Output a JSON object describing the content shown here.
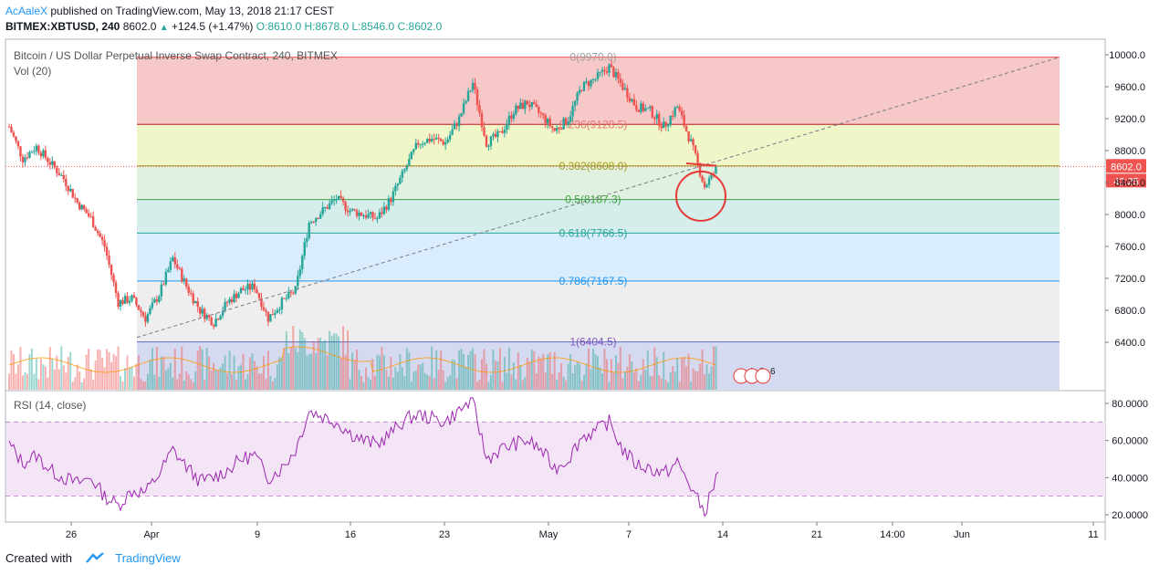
{
  "header": {
    "author": "AcAaleX",
    "published": "published on TradingView.com, May 13, 2018 21:17 CEST",
    "symbol_line": {
      "symbol": "BITMEX:XBTUSD, 240",
      "last": "8602.0",
      "change": "+124.5 (+1.47%)",
      "ohlc": "O:8610.0 H:8678.0 L:8546.0 C:8602.0"
    }
  },
  "main_pane": {
    "title": "Bitcoin / US Dollar Perpetual Inverse Swap Contract, 240, BITMEX",
    "volume_label": "Vol (20)",
    "price_badge": "8602.0",
    "timer_badge": "42:25",
    "event_badges": [
      "4",
      "8",
      "6"
    ]
  },
  "rsi_pane": {
    "label": "RSI (14, close)"
  },
  "footer": {
    "created_with": "Created with",
    "brand": "TradingView"
  },
  "colors": {
    "up": "#26a69a",
    "down": "#ef5350",
    "fib_0_236": "#ef9a9a",
    "fib_0_236_0_382": "#e6ee9c",
    "fib_0_382_0_5": "#c8e6c9",
    "fib_0_5_0_618": "#b2dfdb",
    "fib_0_618_0_786": "#bbdefb",
    "fib_0_786_1": "#e0e0e0",
    "rsi_line": "#9c27b0",
    "rsi_band": "#f3e5f5"
  },
  "chart_data": [
    {
      "type": "candlestick",
      "title": "Bitcoin / US Dollar Perpetual Inverse Swap Contract, 240, BITMEX",
      "y_axis_ticks": [
        10000.0,
        9600.0,
        9200.0,
        8800.0,
        8400.0,
        8000.0,
        7600.0,
        7200.0,
        6800.0,
        6400.0
      ],
      "ylim": [
        6300,
        10100
      ],
      "x_axis_ticks": [
        "26",
        "Apr",
        "9",
        "16",
        "23",
        "May",
        "7",
        "14",
        "21",
        "14:00",
        "Jun",
        "11"
      ],
      "fibonacci": [
        {
          "level": "0",
          "price": 9970.0,
          "label": "0(9970.0)"
        },
        {
          "level": "0.236",
          "price": 9128.5,
          "label": "0.236(9128.5)"
        },
        {
          "level": "0.382",
          "price": 8608.0,
          "label": "0.382(8608.0)"
        },
        {
          "level": "0.5",
          "price": 8187.3,
          "label": "0.5(8187.3)"
        },
        {
          "level": "0.618",
          "price": 7766.5,
          "label": "0.618(7766.5)"
        },
        {
          "level": "0.786",
          "price": 7167.5,
          "label": "0.786(7167.5)"
        },
        {
          "level": "1",
          "price": 6404.5,
          "label": "1(6404.5)"
        }
      ],
      "last_price": 8602.0,
      "path_points": [
        [
          "Mar 22",
          9100
        ],
        [
          "Mar 23",
          8700
        ],
        [
          "Mar 24",
          8850
        ],
        [
          "Mar 25",
          8650
        ],
        [
          "Mar 26",
          8450
        ],
        [
          "Mar 27",
          8150
        ],
        [
          "Mar 28",
          7950
        ],
        [
          "Mar 29",
          7600
        ],
        [
          "Mar 30",
          6900
        ],
        [
          "Mar 31",
          6950
        ],
        [
          "Apr 1",
          6700
        ],
        [
          "Apr 2",
          7000
        ],
        [
          "Apr 3",
          7450
        ],
        [
          "Apr 4",
          7100
        ],
        [
          "Apr 5",
          6800
        ],
        [
          "Apr 6",
          6650
        ],
        [
          "Apr 7",
          6900
        ],
        [
          "Apr 8",
          7050
        ],
        [
          "Apr 9",
          7100
        ],
        [
          "Apr 10",
          6700
        ],
        [
          "Apr 11",
          6900
        ],
        [
          "Apr 12",
          7050
        ],
        [
          "Apr 13",
          7900
        ],
        [
          "Apr 14",
          8050
        ],
        [
          "Apr 15",
          8200
        ],
        [
          "Apr 16",
          8050
        ],
        [
          "Apr 17",
          8000
        ],
        [
          "Apr 18",
          7950
        ],
        [
          "Apr 19",
          8200
        ],
        [
          "Apr 20",
          8550
        ],
        [
          "Apr 21",
          8900
        ],
        [
          "Apr 22",
          8950
        ],
        [
          "Apr 23",
          8900
        ],
        [
          "Apr 24",
          9200
        ],
        [
          "Apr 25",
          9650
        ],
        [
          "Apr 26",
          8900
        ],
        [
          "Apr 27",
          9000
        ],
        [
          "Apr 28",
          9300
        ],
        [
          "Apr 29",
          9400
        ],
        [
          "Apr 30",
          9250
        ],
        [
          "May 1",
          9050
        ],
        [
          "May 2",
          9200
        ],
        [
          "May 3",
          9600
        ],
        [
          "May 4",
          9700
        ],
        [
          "May 5",
          9850
        ],
        [
          "May 6",
          9600
        ],
        [
          "May 7",
          9350
        ],
        [
          "May 8",
          9300
        ],
        [
          "May 9",
          9100
        ],
        [
          "May 10",
          9350
        ],
        [
          "May 11",
          8900
        ],
        [
          "May 12",
          8350
        ],
        [
          "May 13",
          8602
        ]
      ]
    },
    {
      "type": "line",
      "title": "RSI (14, close)",
      "y_axis_ticks": [
        80.0,
        60.0,
        40.0,
        20.0
      ],
      "ylim": [
        15,
        85
      ],
      "bands": [
        30,
        70
      ],
      "path_points": [
        [
          "Mar 22",
          58
        ],
        [
          "Mar 23",
          48
        ],
        [
          "Mar 24",
          52
        ],
        [
          "Mar 25",
          44
        ],
        [
          "Mar 26",
          40
        ],
        [
          "Mar 27",
          37
        ],
        [
          "Mar 28",
          40
        ],
        [
          "Mar 29",
          30
        ],
        [
          "Mar 30",
          25
        ],
        [
          "Mar 31",
          33
        ],
        [
          "Apr 1",
          32
        ],
        [
          "Apr 2",
          42
        ],
        [
          "Apr 3",
          55
        ],
        [
          "Apr 4",
          46
        ],
        [
          "Apr 5",
          38
        ],
        [
          "Apr 6",
          40
        ],
        [
          "Apr 7",
          44
        ],
        [
          "Apr 8",
          50
        ],
        [
          "Apr 9",
          52
        ],
        [
          "Apr 10",
          40
        ],
        [
          "Apr 11",
          45
        ],
        [
          "Apr 12",
          55
        ],
        [
          "Apr 13",
          76
        ],
        [
          "Apr 14",
          73
        ],
        [
          "Apr 15",
          70
        ],
        [
          "Apr 16",
          64
        ],
        [
          "Apr 17",
          60
        ],
        [
          "Apr 18",
          58
        ],
        [
          "Apr 19",
          64
        ],
        [
          "Apr 20",
          71
        ],
        [
          "Apr 21",
          74
        ],
        [
          "Apr 22",
          72
        ],
        [
          "Apr 23",
          70
        ],
        [
          "Apr 24",
          76
        ],
        [
          "Apr 25",
          82
        ],
        [
          "Apr 26",
          50
        ],
        [
          "Apr 27",
          55
        ],
        [
          "Apr 28",
          58
        ],
        [
          "Apr 29",
          60
        ],
        [
          "Apr 30",
          55
        ],
        [
          "May 1",
          45
        ],
        [
          "May 2",
          50
        ],
        [
          "May 3",
          62
        ],
        [
          "May 4",
          65
        ],
        [
          "May 5",
          70
        ],
        [
          "May 6",
          55
        ],
        [
          "May 7",
          47
        ],
        [
          "May 8",
          45
        ],
        [
          "May 9",
          42
        ],
        [
          "May 10",
          48
        ],
        [
          "May 11",
          35
        ],
        [
          "May 12",
          21
        ],
        [
          "May 13",
          43
        ]
      ]
    }
  ]
}
